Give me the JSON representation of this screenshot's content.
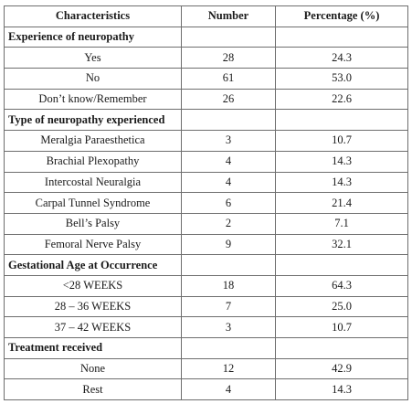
{
  "table": {
    "headers": [
      "Characteristics",
      "Number",
      "Percentage (%)"
    ],
    "sections": [
      {
        "title": "Experience of neuropathy",
        "rows": [
          {
            "label": "Yes",
            "number": "28",
            "percentage": "24.3"
          },
          {
            "label": "No",
            "number": "61",
            "percentage": "53.0"
          },
          {
            "label": "Don’t know/Remember",
            "number": "26",
            "percentage": "22.6"
          }
        ]
      },
      {
        "title": "Type of neuropathy experienced",
        "rows": [
          {
            "label": "Meralgia Paraesthetica",
            "number": "3",
            "percentage": "10.7"
          },
          {
            "label": "Brachial Plexopathy",
            "number": "4",
            "percentage": "14.3"
          },
          {
            "label": "Intercostal Neuralgia",
            "number": "4",
            "percentage": "14.3"
          },
          {
            "label": "Carpal Tunnel Syndrome",
            "number": "6",
            "percentage": "21.4"
          },
          {
            "label": "Bell’s Palsy",
            "number": "2",
            "percentage": "7.1"
          },
          {
            "label": "Femoral Nerve Palsy",
            "number": "9",
            "percentage": "32.1"
          }
        ]
      },
      {
        "title": "Gestational Age at Occurrence",
        "rows": [
          {
            "label": "<28 WEEKS",
            "number": "18",
            "percentage": "64.3"
          },
          {
            "label": "28 – 36 WEEKS",
            "number": "7",
            "percentage": "25.0"
          },
          {
            "label": "37 – 42 WEEKS",
            "number": "3",
            "percentage": "10.7"
          }
        ]
      },
      {
        "title": "Treatment received",
        "rows": [
          {
            "label": "None",
            "number": "12",
            "percentage": "42.9"
          },
          {
            "label": "Rest",
            "number": "4",
            "percentage": "14.3"
          }
        ]
      }
    ]
  }
}
